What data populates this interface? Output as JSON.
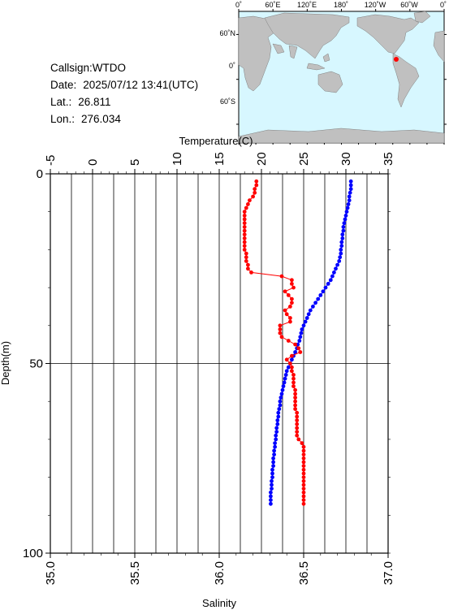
{
  "info": {
    "callsign_label": "Callsign:",
    "callsign": "WTDO",
    "date_label": "Date:",
    "date": "2025/07/12 13:41(UTC)",
    "lat_label": "Lat.:",
    "lat": "26.811",
    "lon_label": "Lon.:",
    "lon": "276.034"
  },
  "map": {
    "top_labels": [
      "0˚",
      "60˚E",
      "120˚E",
      "180˚",
      "120˚W",
      "60˚W",
      "0˚"
    ],
    "lon_ticks": [
      0,
      60,
      120,
      180,
      240,
      300,
      360
    ],
    "left_labels": [
      "60˚N",
      "0˚",
      "60˚S"
    ],
    "lat_ticks": [
      60,
      0,
      -60
    ],
    "ocean_color": "#d7f7ff",
    "land_color": "#c0c0c0",
    "marker_color": "#ff0000",
    "marker_lon": 276.034,
    "marker_lat": 26.811
  },
  "chart_data": {
    "type": "line",
    "ylabel": "Depth(m)",
    "ylim": [
      0,
      100
    ],
    "yticks": [
      0,
      50,
      100
    ],
    "y_inverted": true,
    "grid": true,
    "top_axis": {
      "label": "Temperature(C)",
      "lim": [
        -5,
        35
      ],
      "ticks": [
        -5,
        0,
        5,
        10,
        15,
        20,
        25,
        30,
        35
      ],
      "grid_step": 2.5
    },
    "bottom_axis": {
      "label": "Salinity",
      "lim": [
        35.0,
        37.0
      ],
      "ticks": [
        "35.0",
        "35.5",
        "36.0",
        "36.5",
        "37.0"
      ]
    },
    "series": [
      {
        "axis": "top",
        "color": "#0000ff",
        "points": [
          [
            30.6,
            2
          ],
          [
            30.6,
            3
          ],
          [
            30.6,
            4
          ],
          [
            30.5,
            5
          ],
          [
            30.4,
            6
          ],
          [
            30.4,
            7
          ],
          [
            30.3,
            8
          ],
          [
            30.2,
            9
          ],
          [
            30.1,
            10
          ],
          [
            30.0,
            11
          ],
          [
            29.9,
            12
          ],
          [
            29.8,
            13
          ],
          [
            29.7,
            14
          ],
          [
            29.7,
            15
          ],
          [
            29.6,
            16
          ],
          [
            29.6,
            17
          ],
          [
            29.5,
            18
          ],
          [
            29.5,
            19
          ],
          [
            29.4,
            20
          ],
          [
            29.4,
            21
          ],
          [
            29.3,
            22
          ],
          [
            29.2,
            23
          ],
          [
            29.0,
            24
          ],
          [
            28.8,
            25
          ],
          [
            28.6,
            26
          ],
          [
            28.4,
            27
          ],
          [
            28.2,
            28
          ],
          [
            27.9,
            29
          ],
          [
            27.6,
            30
          ],
          [
            27.3,
            31
          ],
          [
            27.0,
            32
          ],
          [
            26.7,
            33
          ],
          [
            26.4,
            34
          ],
          [
            26.1,
            35
          ],
          [
            25.8,
            36
          ],
          [
            25.6,
            37
          ],
          [
            25.4,
            38
          ],
          [
            25.2,
            39
          ],
          [
            25.0,
            40
          ],
          [
            24.8,
            41
          ],
          [
            24.7,
            42
          ],
          [
            24.6,
            43
          ],
          [
            24.5,
            44
          ],
          [
            24.3,
            45
          ],
          [
            24.2,
            46
          ],
          [
            24.0,
            47
          ],
          [
            23.8,
            48
          ],
          [
            23.6,
            49
          ],
          [
            23.4,
            50
          ],
          [
            23.2,
            51
          ],
          [
            23.0,
            52
          ],
          [
            22.9,
            53
          ],
          [
            22.8,
            54
          ],
          [
            22.7,
            55
          ],
          [
            22.6,
            56
          ],
          [
            22.5,
            57
          ],
          [
            22.4,
            58
          ],
          [
            22.3,
            59
          ],
          [
            22.2,
            60
          ],
          [
            22.2,
            61
          ],
          [
            22.1,
            62
          ],
          [
            22.0,
            63
          ],
          [
            22.0,
            64
          ],
          [
            21.9,
            65
          ],
          [
            21.9,
            66
          ],
          [
            21.8,
            67
          ],
          [
            21.8,
            68
          ],
          [
            21.7,
            69
          ],
          [
            21.7,
            70
          ],
          [
            21.6,
            71
          ],
          [
            21.6,
            72
          ],
          [
            21.5,
            73
          ],
          [
            21.5,
            74
          ],
          [
            21.4,
            75
          ],
          [
            21.4,
            76
          ],
          [
            21.4,
            77
          ],
          [
            21.3,
            78
          ],
          [
            21.3,
            79
          ],
          [
            21.3,
            80
          ],
          [
            21.2,
            81
          ],
          [
            21.2,
            82
          ],
          [
            21.2,
            83
          ],
          [
            21.1,
            84
          ],
          [
            21.1,
            85
          ],
          [
            21.1,
            86
          ],
          [
            21.1,
            87
          ]
        ]
      },
      {
        "axis": "bottom",
        "color": "#ff0000",
        "points": [
          [
            36.22,
            2
          ],
          [
            36.22,
            3
          ],
          [
            36.21,
            4
          ],
          [
            36.21,
            5
          ],
          [
            36.2,
            6
          ],
          [
            36.18,
            7
          ],
          [
            36.17,
            8
          ],
          [
            36.16,
            9
          ],
          [
            36.15,
            10
          ],
          [
            36.15,
            11
          ],
          [
            36.15,
            12
          ],
          [
            36.15,
            13
          ],
          [
            36.15,
            14
          ],
          [
            36.15,
            15
          ],
          [
            36.15,
            16
          ],
          [
            36.15,
            17
          ],
          [
            36.15,
            18
          ],
          [
            36.15,
            19
          ],
          [
            36.15,
            20
          ],
          [
            36.16,
            21
          ],
          [
            36.16,
            22
          ],
          [
            36.16,
            23
          ],
          [
            36.17,
            24
          ],
          [
            36.17,
            25
          ],
          [
            36.19,
            26
          ],
          [
            36.37,
            27
          ],
          [
            36.43,
            28
          ],
          [
            36.43,
            29
          ],
          [
            36.44,
            30
          ],
          [
            36.39,
            31
          ],
          [
            36.41,
            32
          ],
          [
            36.43,
            33
          ],
          [
            36.43,
            34
          ],
          [
            36.42,
            35
          ],
          [
            36.39,
            36
          ],
          [
            36.4,
            37
          ],
          [
            36.42,
            38
          ],
          [
            36.42,
            39
          ],
          [
            36.36,
            40
          ],
          [
            36.36,
            41
          ],
          [
            36.36,
            42
          ],
          [
            36.37,
            43
          ],
          [
            36.41,
            44
          ],
          [
            36.45,
            45
          ],
          [
            36.47,
            46
          ],
          [
            36.48,
            47
          ],
          [
            36.43,
            48
          ],
          [
            36.4,
            49
          ],
          [
            36.42,
            50
          ],
          [
            36.43,
            51
          ],
          [
            36.43,
            52
          ],
          [
            36.44,
            53
          ],
          [
            36.44,
            54
          ],
          [
            36.44,
            55
          ],
          [
            36.44,
            56
          ],
          [
            36.45,
            57
          ],
          [
            36.45,
            58
          ],
          [
            36.45,
            59
          ],
          [
            36.45,
            60
          ],
          [
            36.45,
            61
          ],
          [
            36.45,
            62
          ],
          [
            36.46,
            63
          ],
          [
            36.46,
            64
          ],
          [
            36.46,
            65
          ],
          [
            36.46,
            66
          ],
          [
            36.46,
            67
          ],
          [
            36.46,
            68
          ],
          [
            36.46,
            69
          ],
          [
            36.47,
            70
          ],
          [
            36.49,
            71
          ],
          [
            36.5,
            72
          ],
          [
            36.5,
            73
          ],
          [
            36.5,
            74
          ],
          [
            36.5,
            75
          ],
          [
            36.5,
            76
          ],
          [
            36.5,
            77
          ],
          [
            36.5,
            78
          ],
          [
            36.5,
            79
          ],
          [
            36.5,
            80
          ],
          [
            36.5,
            81
          ],
          [
            36.5,
            82
          ],
          [
            36.5,
            83
          ],
          [
            36.5,
            84
          ],
          [
            36.5,
            85
          ],
          [
            36.5,
            86
          ],
          [
            36.5,
            87
          ]
        ]
      }
    ]
  }
}
